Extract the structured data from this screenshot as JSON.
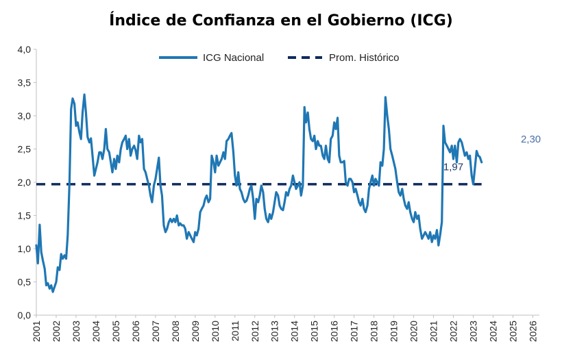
{
  "chart_data": {
    "type": "line",
    "title": "Índice de Confianza en el Gobierno (ICG)",
    "ylim": [
      0,
      4
    ],
    "y_ticks": [
      "0,0",
      "0,5",
      "1,0",
      "1,5",
      "2,0",
      "2,5",
      "3,0",
      "3,5",
      "4,0"
    ],
    "x_tick_labels": [
      "2001",
      "2002",
      "2003",
      "2004",
      "2005",
      "2006",
      "2007",
      "2008",
      "2009",
      "2010",
      "2011",
      "2012",
      "2013",
      "2014",
      "2015",
      "2016",
      "2017",
      "2018",
      "2019",
      "2020",
      "2021",
      "2022",
      "2023",
      "2024",
      "2025",
      "2026"
    ],
    "x_range": [
      2001,
      2026.33
    ],
    "grid": false,
    "legend_position": "top",
    "series": [
      {
        "name": "ICG Nacional",
        "color": "#1f77b4",
        "style": "solid",
        "points": [
          [
            2001.0,
            1.05
          ],
          [
            2001.08,
            0.78
          ],
          [
            2001.17,
            1.36
          ],
          [
            2001.25,
            0.95
          ],
          [
            2001.33,
            0.82
          ],
          [
            2001.42,
            0.7
          ],
          [
            2001.5,
            0.45
          ],
          [
            2001.58,
            0.48
          ],
          [
            2001.67,
            0.4
          ],
          [
            2001.75,
            0.45
          ],
          [
            2001.83,
            0.35
          ],
          [
            2002.0,
            0.5
          ],
          [
            2002.08,
            0.72
          ],
          [
            2002.17,
            0.68
          ],
          [
            2002.25,
            0.92
          ],
          [
            2002.33,
            0.85
          ],
          [
            2002.42,
            0.9
          ],
          [
            2002.5,
            0.85
          ],
          [
            2002.58,
            1.2
          ],
          [
            2002.67,
            2.0
          ],
          [
            2002.75,
            3.1
          ],
          [
            2002.83,
            3.26
          ],
          [
            2002.92,
            3.18
          ],
          [
            2003.0,
            2.85
          ],
          [
            2003.08,
            2.9
          ],
          [
            2003.17,
            2.75
          ],
          [
            2003.25,
            2.65
          ],
          [
            2003.33,
            3.05
          ],
          [
            2003.42,
            3.32
          ],
          [
            2003.5,
            3.05
          ],
          [
            2003.58,
            2.68
          ],
          [
            2003.67,
            2.6
          ],
          [
            2003.75,
            2.66
          ],
          [
            2003.83,
            2.4
          ],
          [
            2003.92,
            2.1
          ],
          [
            2004.0,
            2.2
          ],
          [
            2004.08,
            2.3
          ],
          [
            2004.17,
            2.45
          ],
          [
            2004.25,
            2.45
          ],
          [
            2004.33,
            2.35
          ],
          [
            2004.42,
            2.5
          ],
          [
            2004.5,
            2.8
          ],
          [
            2004.58,
            2.5
          ],
          [
            2004.67,
            2.45
          ],
          [
            2004.75,
            2.3
          ],
          [
            2004.83,
            2.15
          ],
          [
            2004.92,
            2.35
          ],
          [
            2005.0,
            2.2
          ],
          [
            2005.08,
            2.4
          ],
          [
            2005.17,
            2.3
          ],
          [
            2005.25,
            2.5
          ],
          [
            2005.33,
            2.6
          ],
          [
            2005.42,
            2.65
          ],
          [
            2005.5,
            2.7
          ],
          [
            2005.58,
            2.5
          ],
          [
            2005.67,
            2.65
          ],
          [
            2005.75,
            2.4
          ],
          [
            2005.83,
            2.5
          ],
          [
            2005.92,
            2.55
          ],
          [
            2006.0,
            2.48
          ],
          [
            2006.08,
            2.35
          ],
          [
            2006.17,
            2.7
          ],
          [
            2006.25,
            2.6
          ],
          [
            2006.33,
            2.65
          ],
          [
            2006.42,
            2.2
          ],
          [
            2006.5,
            2.15
          ],
          [
            2006.58,
            2.05
          ],
          [
            2006.67,
            1.95
          ],
          [
            2006.75,
            1.8
          ],
          [
            2006.83,
            1.7
          ],
          [
            2006.92,
            1.95
          ],
          [
            2007.0,
            2.05
          ],
          [
            2007.08,
            2.2
          ],
          [
            2007.17,
            2.37
          ],
          [
            2007.25,
            1.95
          ],
          [
            2007.33,
            1.8
          ],
          [
            2007.42,
            1.35
          ],
          [
            2007.5,
            1.25
          ],
          [
            2007.58,
            1.3
          ],
          [
            2007.67,
            1.4
          ],
          [
            2007.75,
            1.45
          ],
          [
            2007.83,
            1.4
          ],
          [
            2007.92,
            1.45
          ],
          [
            2008.0,
            1.4
          ],
          [
            2008.08,
            1.5
          ],
          [
            2008.17,
            1.35
          ],
          [
            2008.25,
            1.38
          ],
          [
            2008.33,
            1.35
          ],
          [
            2008.42,
            1.35
          ],
          [
            2008.5,
            1.3
          ],
          [
            2008.58,
            1.15
          ],
          [
            2008.67,
            1.25
          ],
          [
            2008.75,
            1.2
          ],
          [
            2008.83,
            1.15
          ],
          [
            2008.92,
            1.1
          ],
          [
            2009.0,
            1.25
          ],
          [
            2009.08,
            1.2
          ],
          [
            2009.17,
            1.3
          ],
          [
            2009.25,
            1.55
          ],
          [
            2009.33,
            1.6
          ],
          [
            2009.42,
            1.65
          ],
          [
            2009.5,
            1.75
          ],
          [
            2009.58,
            1.8
          ],
          [
            2009.67,
            1.7
          ],
          [
            2009.75,
            1.75
          ],
          [
            2009.83,
            2.4
          ],
          [
            2009.92,
            2.3
          ],
          [
            2010.0,
            2.15
          ],
          [
            2010.08,
            2.4
          ],
          [
            2010.17,
            2.25
          ],
          [
            2010.25,
            2.3
          ],
          [
            2010.33,
            2.35
          ],
          [
            2010.42,
            2.45
          ],
          [
            2010.5,
            2.35
          ],
          [
            2010.58,
            2.62
          ],
          [
            2010.67,
            2.65
          ],
          [
            2010.75,
            2.7
          ],
          [
            2010.83,
            2.74
          ],
          [
            2010.92,
            2.45
          ],
          [
            2011.0,
            2.1
          ],
          [
            2011.08,
            1.95
          ],
          [
            2011.17,
            2.15
          ],
          [
            2011.25,
            1.9
          ],
          [
            2011.33,
            1.85
          ],
          [
            2011.42,
            1.75
          ],
          [
            2011.5,
            1.7
          ],
          [
            2011.58,
            1.72
          ],
          [
            2011.67,
            1.8
          ],
          [
            2011.75,
            1.9
          ],
          [
            2011.83,
            1.95
          ],
          [
            2011.92,
            1.75
          ],
          [
            2012.0,
            1.45
          ],
          [
            2012.08,
            1.75
          ],
          [
            2012.17,
            1.7
          ],
          [
            2012.25,
            1.8
          ],
          [
            2012.33,
            1.95
          ],
          [
            2012.42,
            1.85
          ],
          [
            2012.5,
            1.6
          ],
          [
            2012.58,
            1.45
          ],
          [
            2012.67,
            1.4
          ],
          [
            2012.75,
            1.52
          ],
          [
            2012.83,
            1.45
          ],
          [
            2012.92,
            1.55
          ],
          [
            2013.0,
            1.7
          ],
          [
            2013.08,
            1.85
          ],
          [
            2013.17,
            1.8
          ],
          [
            2013.25,
            1.65
          ],
          [
            2013.33,
            1.6
          ],
          [
            2013.42,
            1.58
          ],
          [
            2013.5,
            1.7
          ],
          [
            2013.58,
            1.85
          ],
          [
            2013.67,
            1.8
          ],
          [
            2013.75,
            1.9
          ],
          [
            2013.83,
            1.95
          ],
          [
            2013.92,
            2.1
          ],
          [
            2014.0,
            2.0
          ],
          [
            2014.08,
            1.9
          ],
          [
            2014.17,
            1.95
          ],
          [
            2014.25,
            2.0
          ],
          [
            2014.33,
            1.8
          ],
          [
            2014.42,
            1.95
          ],
          [
            2014.5,
            3.13
          ],
          [
            2014.58,
            2.9
          ],
          [
            2014.67,
            3.05
          ],
          [
            2014.75,
            2.8
          ],
          [
            2014.83,
            2.65
          ],
          [
            2014.92,
            2.62
          ],
          [
            2015.0,
            2.7
          ],
          [
            2015.08,
            2.5
          ],
          [
            2015.17,
            2.62
          ],
          [
            2015.25,
            2.55
          ],
          [
            2015.33,
            2.55
          ],
          [
            2015.42,
            2.4
          ],
          [
            2015.5,
            2.35
          ],
          [
            2015.58,
            2.55
          ],
          [
            2015.67,
            2.35
          ],
          [
            2015.75,
            2.3
          ],
          [
            2015.83,
            2.65
          ],
          [
            2015.92,
            2.7
          ],
          [
            2016.0,
            2.9
          ],
          [
            2016.08,
            2.8
          ],
          [
            2016.17,
            2.97
          ],
          [
            2016.25,
            2.4
          ],
          [
            2016.33,
            2.3
          ],
          [
            2016.42,
            2.3
          ],
          [
            2016.5,
            2.32
          ],
          [
            2016.58,
            2.0
          ],
          [
            2016.67,
            1.95
          ],
          [
            2016.75,
            2.05
          ],
          [
            2016.83,
            2.05
          ],
          [
            2016.92,
            2.0
          ],
          [
            2017.0,
            1.85
          ],
          [
            2017.08,
            1.9
          ],
          [
            2017.17,
            1.8
          ],
          [
            2017.25,
            1.7
          ],
          [
            2017.33,
            1.65
          ],
          [
            2017.42,
            1.75
          ],
          [
            2017.5,
            1.6
          ],
          [
            2017.58,
            1.55
          ],
          [
            2017.67,
            1.65
          ],
          [
            2017.75,
            1.9
          ],
          [
            2017.83,
            2.0
          ],
          [
            2017.92,
            2.1
          ],
          [
            2018.0,
            1.95
          ],
          [
            2018.08,
            2.05
          ],
          [
            2018.17,
            2.0
          ],
          [
            2018.25,
            1.95
          ],
          [
            2018.33,
            2.3
          ],
          [
            2018.42,
            2.25
          ],
          [
            2018.5,
            2.5
          ],
          [
            2018.58,
            3.28
          ],
          [
            2018.67,
            3.0
          ],
          [
            2018.75,
            2.8
          ],
          [
            2018.83,
            2.5
          ],
          [
            2018.92,
            2.4
          ],
          [
            2019.0,
            2.3
          ],
          [
            2019.08,
            2.2
          ],
          [
            2019.17,
            2.0
          ],
          [
            2019.25,
            1.85
          ],
          [
            2019.33,
            1.8
          ],
          [
            2019.42,
            1.9
          ],
          [
            2019.5,
            1.75
          ],
          [
            2019.58,
            1.65
          ],
          [
            2019.67,
            1.6
          ],
          [
            2019.75,
            1.7
          ],
          [
            2019.83,
            1.55
          ],
          [
            2019.92,
            1.45
          ],
          [
            2020.0,
            1.4
          ],
          [
            2020.08,
            1.55
          ],
          [
            2020.17,
            1.45
          ],
          [
            2020.25,
            1.5
          ],
          [
            2020.33,
            1.3
          ],
          [
            2020.42,
            1.15
          ],
          [
            2020.5,
            1.2
          ],
          [
            2020.58,
            1.25
          ],
          [
            2020.67,
            1.2
          ],
          [
            2020.75,
            1.15
          ],
          [
            2020.83,
            1.25
          ],
          [
            2020.92,
            1.1
          ],
          [
            2021.0,
            1.2
          ],
          [
            2021.08,
            1.15
          ],
          [
            2021.17,
            1.28
          ],
          [
            2021.25,
            1.05
          ],
          [
            2021.33,
            1.2
          ],
          [
            2021.42,
            1.4
          ],
          [
            2021.5,
            2.85
          ],
          [
            2021.58,
            2.6
          ],
          [
            2021.67,
            2.55
          ],
          [
            2021.75,
            2.5
          ],
          [
            2021.83,
            2.45
          ],
          [
            2021.92,
            2.55
          ],
          [
            2022.0,
            2.35
          ],
          [
            2022.08,
            2.55
          ],
          [
            2022.17,
            2.3
          ],
          [
            2022.25,
            2.6
          ],
          [
            2022.33,
            2.65
          ],
          [
            2022.42,
            2.6
          ],
          [
            2022.5,
            2.5
          ],
          [
            2022.58,
            2.4
          ],
          [
            2022.67,
            2.45
          ],
          [
            2022.75,
            2.35
          ],
          [
            2022.83,
            2.4
          ],
          [
            2022.92,
            2.1
          ],
          [
            2023.0,
            1.97
          ],
          [
            2023.08,
            2.2
          ],
          [
            2023.17,
            2.47
          ],
          [
            2023.25,
            2.4
          ],
          [
            2023.33,
            2.38
          ],
          [
            2023.42,
            2.3
          ]
        ]
      },
      {
        "name": "Prom. Histórico",
        "color": "#0f2a5e",
        "style": "dashed",
        "value": 1.97
      }
    ],
    "annotations": [
      {
        "text": "1,97",
        "x": 2022.0,
        "y": 2.18,
        "color": "#1f3864"
      },
      {
        "text": "2,30",
        "x": 2025.9,
        "y": 2.6,
        "color": "#4a6fa8"
      }
    ]
  }
}
